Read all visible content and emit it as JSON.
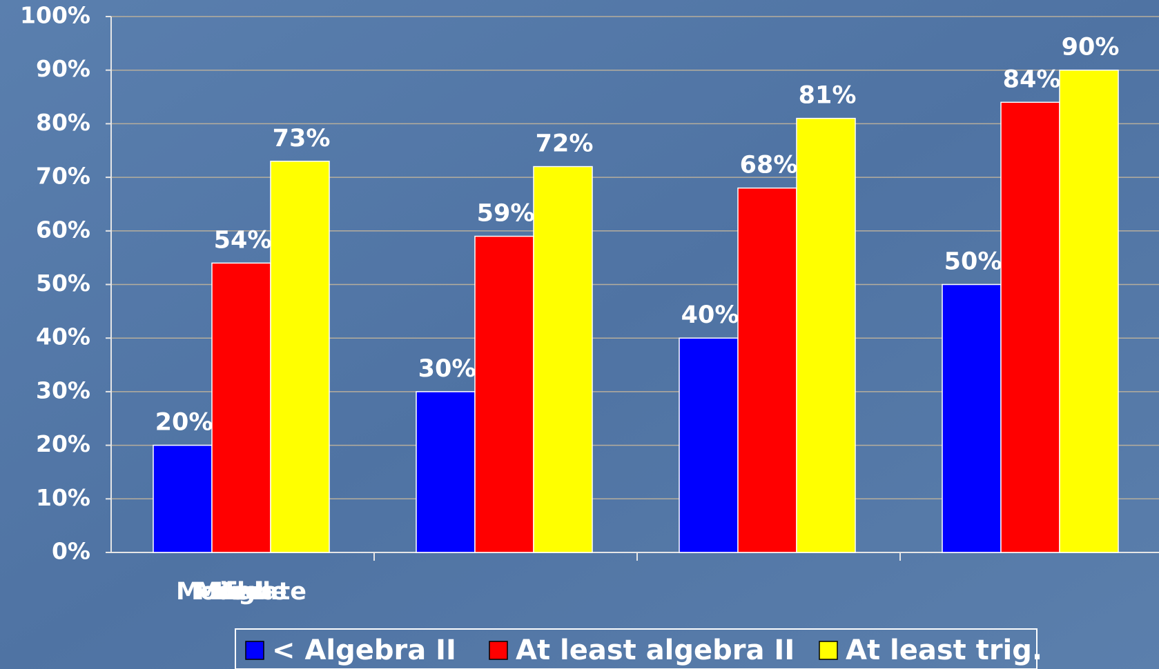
{
  "chart_data": {
    "type": "bar",
    "categories": [
      "Low",
      "Moderate",
      "Middle",
      "High"
    ],
    "series": [
      {
        "name": "< Algebra II",
        "color": "#0000ff",
        "values": [
          20,
          30,
          40,
          50
        ],
        "value_labels": [
          "20%",
          "30%",
          "40%",
          "50%"
        ]
      },
      {
        "name": "At least algebra II",
        "color": "#ff0000",
        "values": [
          54,
          59,
          68,
          84
        ],
        "value_labels": [
          "54%",
          "59%",
          "68%",
          "84%"
        ]
      },
      {
        "name": "At least trig.",
        "color": "#ffff00",
        "values": [
          73,
          72,
          81,
          90
        ],
        "value_labels": [
          "73%",
          "72%",
          "81%",
          "90%"
        ]
      }
    ],
    "ylim": [
      0,
      100
    ],
    "yticks": [
      {
        "value": 0,
        "label": "0%"
      },
      {
        "value": 10,
        "label": "10%"
      },
      {
        "value": 20,
        "label": "20%"
      },
      {
        "value": 30,
        "label": "30%"
      },
      {
        "value": 40,
        "label": "40%"
      },
      {
        "value": 50,
        "label": "50%"
      },
      {
        "value": 60,
        "label": "60%"
      },
      {
        "value": 70,
        "label": "70%"
      },
      {
        "value": 80,
        "label": "80%"
      },
      {
        "value": 90,
        "label": "90%"
      },
      {
        "value": 100,
        "label": "100%"
      }
    ],
    "grid": true,
    "legend": "bottom"
  }
}
